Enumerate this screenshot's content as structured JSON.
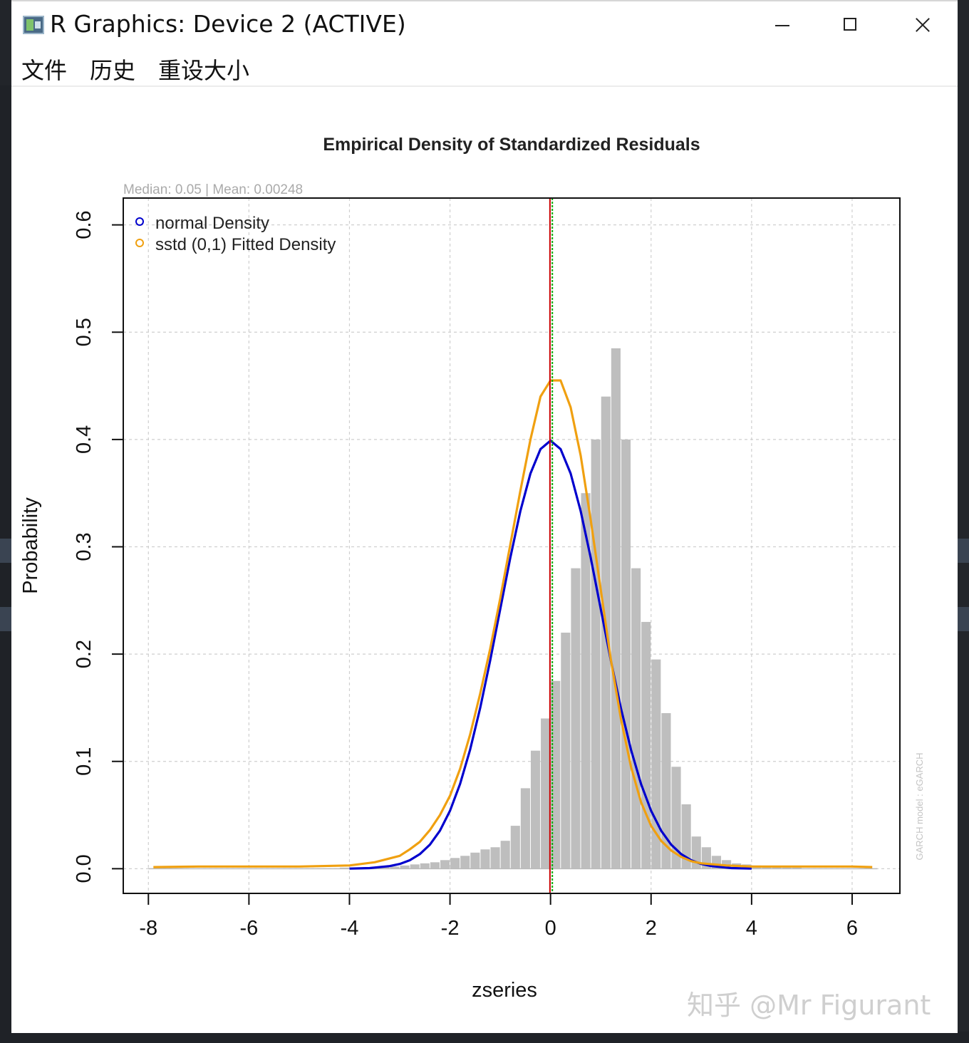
{
  "window": {
    "title": "R Graphics: Device 2 (ACTIVE)"
  },
  "menu": {
    "items": [
      "文件",
      "历史",
      "重设大小"
    ]
  },
  "plot": {
    "subtitle": "Median:  0.05 | Mean:  0.00248",
    "side_note": "GARCH model : eGARCH",
    "legend_normal": "normal Density",
    "legend_sstd": "sstd (0,1) Fitted Density"
  },
  "chart_data": {
    "type": "bar",
    "title": "Empirical Density of Standardized Residuals",
    "xlabel": "zseries",
    "ylabel": "Probability",
    "xlim": [
      -8.5,
      6.95
    ],
    "ylim": [
      -0.023,
      0.625
    ],
    "x_ticks": [
      "-8",
      "-6",
      "-4",
      "-2",
      "0",
      "2",
      "4",
      "6"
    ],
    "x_tick_values": [
      -8,
      -6,
      -4,
      -2,
      0,
      2,
      4,
      6
    ],
    "y_ticks": [
      "0.0",
      "0.1",
      "0.2",
      "0.3",
      "0.4",
      "0.5",
      "0.6"
    ],
    "y_tick_values": [
      0,
      0.1,
      0.2,
      0.3,
      0.4,
      0.5,
      0.6
    ],
    "grid": true,
    "legend_position": "top-left",
    "colors": {
      "histogram": "#bebebe",
      "normal": "#0000cd",
      "sstd": "#f0a010",
      "median_line": "#00aa00",
      "mean_line": "#cc0000"
    },
    "histogram": {
      "bin_width": 0.2,
      "bin_start": -4.2,
      "values": [
        0.001,
        0.001,
        0.001,
        0.001,
        0.002,
        0.002,
        0.003,
        0.004,
        0.005,
        0.006,
        0.008,
        0.01,
        0.012,
        0.015,
        0.018,
        0.02,
        0.026,
        0.04,
        0.075,
        0.11,
        0.14,
        0.175,
        0.22,
        0.28,
        0.35,
        0.4,
        0.44,
        0.485,
        0.4,
        0.28,
        0.23,
        0.195,
        0.145,
        0.095,
        0.06,
        0.03,
        0.02,
        0.012,
        0.008,
        0.005,
        0.004,
        0.003,
        0.002,
        0.002,
        0.001,
        0.001
      ]
    },
    "series": [
      {
        "name": "normal Density",
        "x": [
          -4,
          -3.6,
          -3.2,
          -3,
          -2.8,
          -2.6,
          -2.4,
          -2.2,
          -2,
          -1.8,
          -1.6,
          -1.4,
          -1.2,
          -1,
          -0.8,
          -0.6,
          -0.4,
          -0.2,
          0,
          0.2,
          0.4,
          0.6,
          0.8,
          1,
          1.2,
          1.4,
          1.6,
          1.8,
          2,
          2.2,
          2.4,
          2.6,
          2.8,
          3,
          3.2,
          3.6,
          4
        ],
        "y": [
          0.0001,
          0.0006,
          0.0024,
          0.0044,
          0.0079,
          0.0136,
          0.0224,
          0.0355,
          0.054,
          0.079,
          0.1109,
          0.1497,
          0.1942,
          0.242,
          0.2897,
          0.3332,
          0.3683,
          0.391,
          0.3989,
          0.391,
          0.3683,
          0.3332,
          0.2897,
          0.242,
          0.1942,
          0.1497,
          0.1109,
          0.079,
          0.054,
          0.0355,
          0.0224,
          0.0136,
          0.0079,
          0.0044,
          0.0024,
          0.0006,
          0.0001
        ]
      },
      {
        "name": "sstd (0,1) Fitted Density",
        "x": [
          -7.9,
          -7,
          -6,
          -5,
          -4,
          -3.5,
          -3,
          -2.8,
          -2.6,
          -2.4,
          -2.2,
          -2,
          -1.8,
          -1.6,
          -1.4,
          -1.2,
          -1,
          -0.8,
          -0.6,
          -0.4,
          -0.2,
          0,
          0.2,
          0.4,
          0.6,
          0.8,
          1,
          1.2,
          1.4,
          1.6,
          1.8,
          2,
          2.2,
          2.4,
          2.6,
          2.8,
          3,
          3.5,
          4,
          5,
          6,
          6.4
        ],
        "y": [
          0.0015,
          0.002,
          0.002,
          0.002,
          0.003,
          0.006,
          0.012,
          0.018,
          0.025,
          0.036,
          0.05,
          0.068,
          0.093,
          0.125,
          0.163,
          0.205,
          0.252,
          0.302,
          0.352,
          0.4,
          0.44,
          0.455,
          0.455,
          0.43,
          0.385,
          0.325,
          0.26,
          0.195,
          0.14,
          0.095,
          0.062,
          0.04,
          0.026,
          0.017,
          0.011,
          0.007,
          0.005,
          0.003,
          0.002,
          0.002,
          0.002,
          0.0015
        ]
      }
    ],
    "median": 0.05,
    "mean": 0.00248
  }
}
